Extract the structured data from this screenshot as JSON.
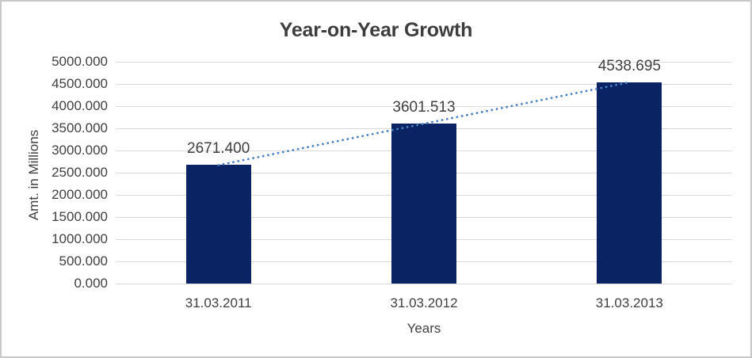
{
  "chart": {
    "title": "Year-on-Year Growth",
    "x_axis_title": "Years",
    "y_axis_title": "Amt. in Millions"
  },
  "chart_data": {
    "type": "bar",
    "title": "Year-on-Year Growth",
    "xlabel": "Years",
    "ylabel": "Amt. in Millions",
    "categories": [
      "31.03.2011",
      "31.03.2012",
      "31.03.2013"
    ],
    "values": [
      2671.4,
      3601.513,
      4538.695
    ],
    "data_labels": [
      "2671.400",
      "3601.513",
      "4538.695"
    ],
    "ylim": [
      0,
      5000
    ],
    "y_tick_step": 500,
    "y_tick_labels": [
      "0.000",
      "500.000",
      "1000.000",
      "1500.000",
      "2000.000",
      "2500.000",
      "3000.000",
      "3500.000",
      "4000.000",
      "4500.000",
      "5000.000"
    ],
    "grid": true,
    "legend": "none",
    "trendline": {
      "type": "linear",
      "style": "dotted"
    }
  },
  "colors": {
    "bar": "#0a2463",
    "trendline": "#4a81c4",
    "gridline": "#d9d9d9",
    "text": "#404040",
    "title_text": "#3d3d3d",
    "frame_border": "#c9c9c9",
    "background": "#ffffff"
  }
}
